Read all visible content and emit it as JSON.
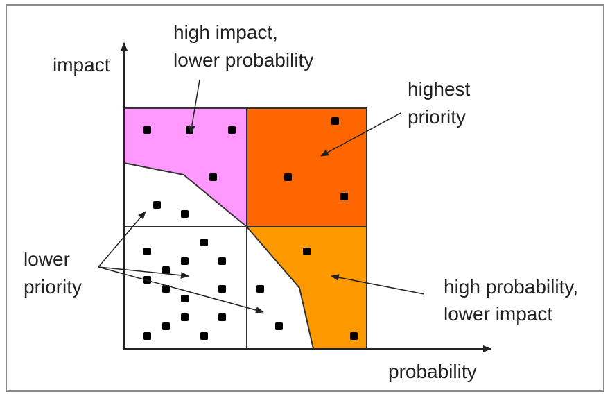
{
  "labels": {
    "y_axis": "impact",
    "x_axis": "probability",
    "top_left": [
      "high impact,",
      "lower probability"
    ],
    "top_right": [
      "highest",
      "priority"
    ],
    "left": [
      "lower",
      "priority"
    ],
    "bottom_right": [
      "high probability,",
      "lower impact"
    ]
  },
  "colors": {
    "high_impact_low_prob": "#ff99ff",
    "highest_priority": "#ff6600",
    "high_prob_low_impact": "#ff9900",
    "lower_priority": "#ffffff",
    "dots": "#000000",
    "lines": "#333333"
  }
}
